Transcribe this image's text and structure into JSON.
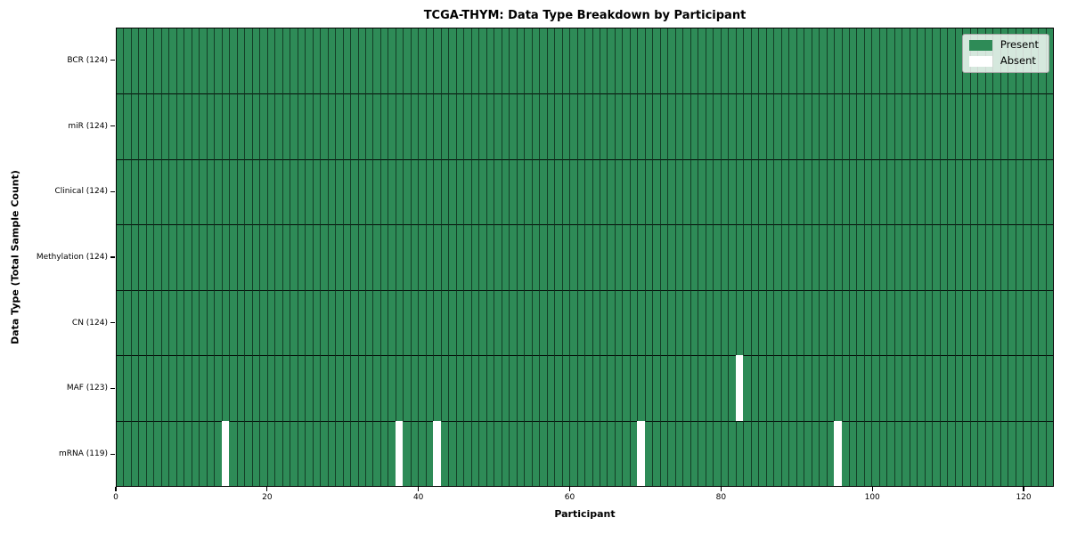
{
  "colors": {
    "present": "#2e8b57",
    "absent": "#ffffff",
    "cell_edge": "rgba(0,0,0,0.55)",
    "spine": "#000000",
    "background": "#ffffff"
  },
  "chart_data": {
    "type": "heatmap",
    "title": "TCGA-THYM: Data Type Breakdown by Participant",
    "xlabel": "Participant",
    "ylabel": "Data Type (Total Sample Count)",
    "x_range": [
      0,
      124
    ],
    "n_participants": 124,
    "x_ticks": [
      0,
      20,
      40,
      60,
      80,
      100,
      120
    ],
    "grid": "cell-edges",
    "legend_position": "upper right",
    "legend": {
      "items": [
        {
          "label": "Present",
          "color_key": "present"
        },
        {
          "label": "Absent",
          "color_key": "absent"
        }
      ]
    },
    "rows": [
      {
        "label": "BCR (124)",
        "data_type": "BCR",
        "present_count": 124,
        "absent_participants": []
      },
      {
        "label": "miR (124)",
        "data_type": "miR",
        "present_count": 124,
        "absent_participants": []
      },
      {
        "label": "Clinical (124)",
        "data_type": "Clinical",
        "present_count": 124,
        "absent_participants": []
      },
      {
        "label": "Methylation (124)",
        "data_type": "Methylation",
        "present_count": 124,
        "absent_participants": []
      },
      {
        "label": "CN (124)",
        "data_type": "CN",
        "present_count": 124,
        "absent_participants": []
      },
      {
        "label": "MAF (123)",
        "data_type": "MAF",
        "present_count": 123,
        "absent_participants": [
          82
        ]
      },
      {
        "label": "mRNA (119)",
        "data_type": "mRNA",
        "present_count": 119,
        "absent_participants": [
          14,
          37,
          42,
          69,
          95
        ]
      }
    ]
  }
}
